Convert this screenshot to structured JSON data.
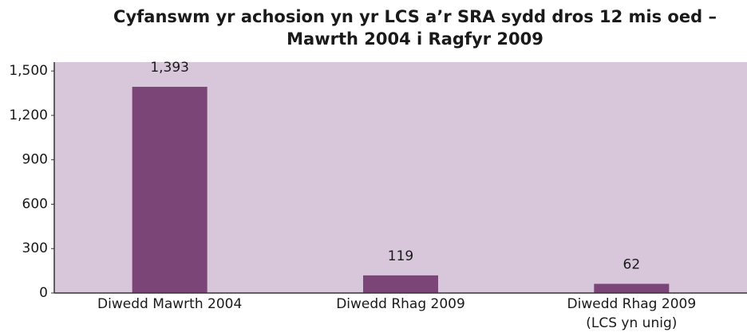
{
  "chart_data": {
    "type": "bar",
    "title": "Cyfanswm yr achosion yn yr LCS a’r SRA sydd dros 12 mis oed –",
    "subtitle": "Mawrth 2004 i Ragfyr 2009",
    "categories": [
      "Diwedd Mawrth 2004",
      "Diwedd Rhag 2009",
      "Diwedd Rhag 2009\n(LCS yn unig)"
    ],
    "values": [
      1393,
      119,
      62
    ],
    "value_labels": [
      "1,393",
      "119",
      "62"
    ],
    "color": "#7b4577",
    "background": "#d8c6da",
    "ylim": [
      0,
      1560
    ],
    "yticks": [
      0,
      300,
      600,
      900,
      {
        "value": 1200,
        "label": "1,200"
      },
      {
        "value": 1500,
        "label": "1,500"
      }
    ],
    "grid": false
  }
}
